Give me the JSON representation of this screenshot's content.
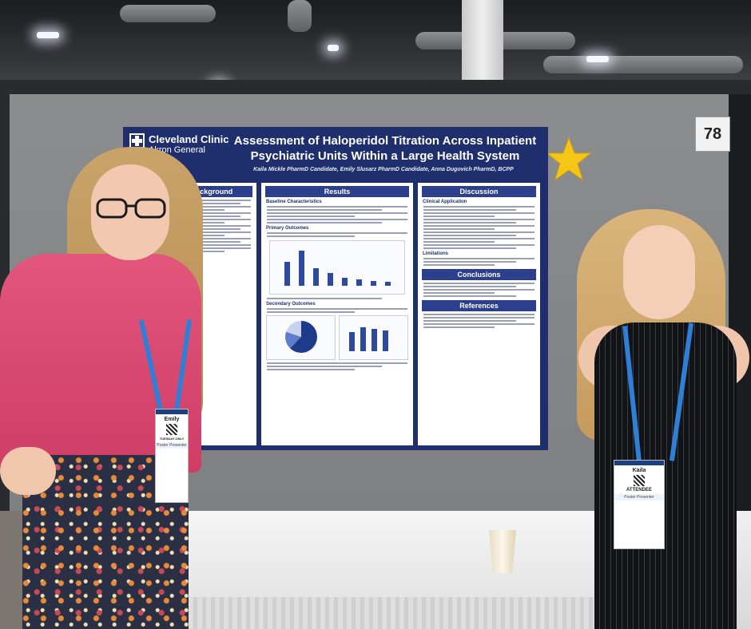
{
  "booth": {
    "number": "78"
  },
  "poster": {
    "logo": {
      "name": "Cleveland Clinic",
      "sub": "Akron General"
    },
    "title": "Assessment of Haloperidol Titration Across Inpatient Psychiatric Units Within a Large Health System",
    "authors": "Kaila Mickle PharmD Candidate, Emily Slusarz PharmD Candidate, Anna Dugovich PharmD, BCPP",
    "sections": {
      "background": "Background",
      "results": "Results",
      "discussion": "Discussion",
      "conclusions": "Conclusions",
      "references": "References"
    },
    "subheadings": {
      "baseline": "Baseline Characteristics",
      "primary": "Primary Outcomes",
      "secondary": "Secondary Outcomes",
      "clinical": "Clinical Application",
      "limitations": "Limitations"
    }
  },
  "badges": {
    "left": {
      "name": "Emily",
      "role": "TUESDAY ONLY",
      "foot": "Poster Presenter"
    },
    "right": {
      "name": "Kaila",
      "role": "ATTENDEE",
      "foot": "Poster Presenter"
    }
  },
  "colors": {
    "poster_navy": "#1f2f6e",
    "section_blue": "#2c3f8c",
    "star_gold": "#f5c518",
    "shirt_pink": "#d8456e"
  }
}
